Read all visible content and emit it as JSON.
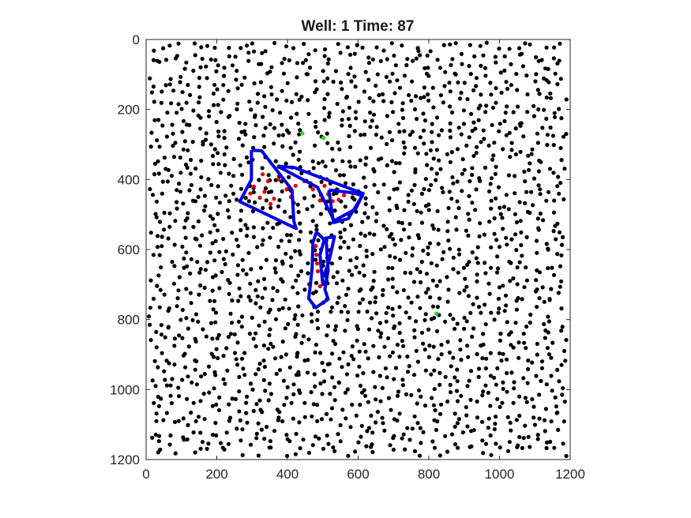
{
  "chart_data": {
    "type": "scatter",
    "title": "Well: 1 Time: 87",
    "xlabel": "",
    "ylabel": "",
    "xlim": [
      0,
      1200
    ],
    "ylim": [
      0,
      1200
    ],
    "y_reversed": true,
    "grid": false,
    "x_ticks": [
      0,
      200,
      400,
      600,
      800,
      1000,
      1200
    ],
    "y_ticks": [
      0,
      200,
      400,
      600,
      800,
      1000,
      1200
    ],
    "colors": {
      "background_points": "#000000",
      "highlight_points": "#e00000",
      "marker_points": "#22dd22",
      "outlines": "#0000e0"
    },
    "background_points_count": 2000,
    "highlight_points": [
      [
        305,
        420
      ],
      [
        335,
        435
      ],
      [
        362,
        455
      ],
      [
        322,
        452
      ],
      [
        345,
        405
      ],
      [
        375,
        400
      ],
      [
        398,
        428
      ],
      [
        423,
        418
      ],
      [
        448,
        405
      ],
      [
        472,
        428
      ],
      [
        505,
        418
      ],
      [
        535,
        432
      ],
      [
        560,
        445
      ],
      [
        585,
        440
      ],
      [
        330,
        385
      ],
      [
        528,
        462
      ],
      [
        295,
        440
      ],
      [
        352,
        470
      ],
      [
        492,
        460
      ],
      [
        515,
        442
      ],
      [
        465,
        410
      ],
      [
        545,
        458
      ],
      [
        410,
        450
      ],
      [
        480,
        590
      ],
      [
        482,
        615
      ],
      [
        484,
        640
      ],
      [
        486,
        662
      ],
      [
        500,
        690
      ],
      [
        492,
        705
      ]
    ],
    "marker_points": [
      [
        442,
        268
      ],
      [
        502,
        281
      ],
      [
        822,
        783
      ]
    ],
    "outlines": [
      [
        [
          298,
          316
        ],
        [
          327,
          318
        ],
        [
          413,
          430
        ],
        [
          418,
          520
        ],
        [
          425,
          540
        ],
        [
          265,
          463
        ],
        [
          298,
          400
        ],
        [
          298,
          316
        ]
      ],
      [
        [
          372,
          362
        ],
        [
          420,
          366
        ],
        [
          614,
          440
        ],
        [
          593,
          484
        ],
        [
          532,
          518
        ],
        [
          485,
          422
        ],
        [
          372,
          362
        ]
      ],
      [
        [
          517,
          430
        ],
        [
          585,
          438
        ],
        [
          612,
          446
        ],
        [
          572,
          512
        ],
        [
          530,
          523
        ],
        [
          517,
          430
        ]
      ],
      [
        [
          482,
          550
        ],
        [
          510,
          578
        ],
        [
          515,
          660
        ],
        [
          506,
          714
        ],
        [
          515,
          742
        ],
        [
          480,
          766
        ],
        [
          460,
          740
        ],
        [
          465,
          700
        ],
        [
          470,
          650
        ],
        [
          472,
          580
        ],
        [
          482,
          550
        ]
      ],
      [
        [
          505,
          568
        ],
        [
          533,
          563
        ],
        [
          523,
          610
        ],
        [
          516,
          640
        ],
        [
          505,
          668
        ],
        [
          512,
          690
        ],
        [
          500,
          700
        ],
        [
          495,
          648
        ],
        [
          492,
          615
        ],
        [
          505,
          568
        ]
      ]
    ]
  }
}
